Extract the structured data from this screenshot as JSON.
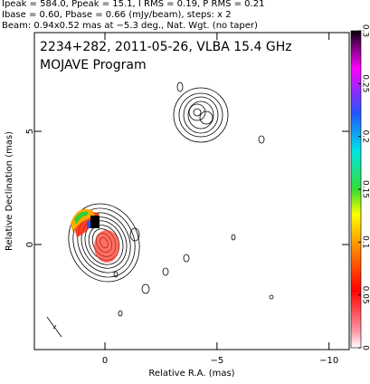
{
  "chart_data": {
    "type": "contour",
    "header": [
      "Ipeak = 584.0, Ppeak = 15.1, I RMS = 0.19, P RMS = 0.21",
      "Ibase = 0.60, Pbase = 0.66 (mJy/beam), steps: x 2",
      "Beam: 0.94x0.52 mas at −5.3 deg., Nat. Wgt. (no taper)"
    ],
    "title": "2234+282, 2011-05-26, VLBA 15.4 GHz",
    "subtitle": "MOJAVE Program",
    "x_label": "Relative R.A. (mas)",
    "y_label": "Relative Declination (mas)",
    "xlim": [
      3.15,
      -10.9
    ],
    "xticks": [
      0,
      {
        "value": -5,
        "label": "−5"
      },
      {
        "value": -10,
        "label": "−10"
      }
    ],
    "ylim": [
      -4.64,
      9.36
    ],
    "yticks": [
      0,
      5
    ],
    "colorbar": {
      "lim": [
        0,
        0.3
      ],
      "ticks": [
        0,
        0.05,
        0.1,
        0.15,
        0.2,
        0.25,
        0.3
      ]
    }
  }
}
